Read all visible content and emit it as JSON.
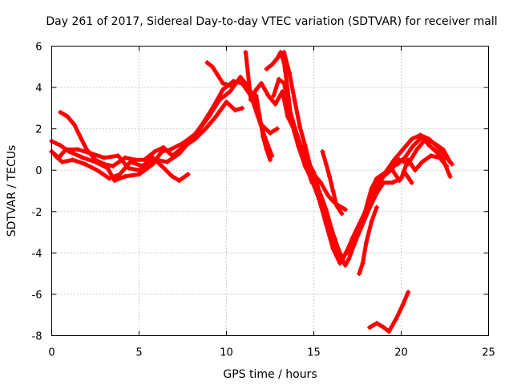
{
  "chart_data": {
    "type": "scatter",
    "title": "Day 261 of 2017, Sidereal Day-to-day VTEC variation (SDTVAR) for receiver mall",
    "xlabel": "GPS time / hours",
    "ylabel": "SDTVAR / TECUs",
    "xlim": [
      0,
      25
    ],
    "ylim": [
      -8,
      6
    ],
    "xticks": [
      "0",
      "5",
      "10",
      "15",
      "20",
      "25"
    ],
    "yticks": [
      "-8",
      "-6",
      "-4",
      "-2",
      "0",
      "2",
      "4",
      "6"
    ],
    "grid": true,
    "legend": "none",
    "marker": "plus",
    "color": "#ff0000",
    "series": [
      {
        "points": [
          [
            0.0,
            1.4
          ],
          [
            0.5,
            1.2
          ],
          [
            1.0,
            0.9
          ],
          [
            1.8,
            0.6
          ],
          [
            2.5,
            0.4
          ],
          [
            3.2,
            0.1
          ],
          [
            3.6,
            -0.5
          ],
          [
            4.2,
            -0.3
          ],
          [
            5.0,
            -0.2
          ],
          [
            5.8,
            0.3
          ],
          [
            6.3,
            0.9
          ],
          [
            6.8,
            1.0
          ],
          [
            7.5,
            1.3
          ],
          [
            8.3,
            1.8
          ],
          [
            9.0,
            2.6
          ],
          [
            9.6,
            3.4
          ],
          [
            10.2,
            3.8
          ],
          [
            10.8,
            4.5
          ],
          [
            11.3,
            4.0
          ],
          [
            11.7,
            3.1
          ],
          [
            12.0,
            2.2
          ],
          [
            12.5,
            1.8
          ],
          [
            12.9,
            2.0
          ]
        ]
      },
      {
        "points": [
          [
            0.0,
            0.9
          ],
          [
            0.4,
            0.6
          ],
          [
            0.8,
            1.0
          ],
          [
            1.5,
            1.0
          ],
          [
            2.3,
            0.8
          ],
          [
            3.0,
            0.6
          ],
          [
            3.8,
            0.7
          ],
          [
            4.4,
            0.1
          ],
          [
            5.0,
            0.0
          ],
          [
            5.6,
            0.3
          ],
          [
            6.0,
            0.5
          ],
          [
            6.6,
            0.4
          ],
          [
            7.3,
            0.8
          ],
          [
            7.9,
            1.4
          ],
          [
            8.6,
            2.2
          ],
          [
            9.2,
            3.0
          ],
          [
            9.8,
            3.9
          ],
          [
            10.4,
            4.3
          ],
          [
            10.9,
            4.2
          ],
          [
            11.4,
            3.6
          ],
          [
            11.8,
            2.6
          ],
          [
            12.2,
            1.6
          ],
          [
            12.6,
            0.7
          ]
        ]
      },
      {
        "points": [
          [
            0.2,
            0.7
          ],
          [
            0.6,
            0.4
          ],
          [
            1.2,
            0.5
          ],
          [
            1.9,
            0.3
          ],
          [
            2.6,
            0.0
          ],
          [
            3.3,
            -0.4
          ],
          [
            3.9,
            -0.2
          ],
          [
            4.5,
            0.4
          ],
          [
            5.2,
            0.2
          ],
          [
            5.8,
            0.6
          ],
          [
            6.3,
            0.2
          ],
          [
            6.9,
            -0.3
          ],
          [
            7.3,
            -0.5
          ],
          [
            7.8,
            -0.2
          ]
        ]
      },
      {
        "points": [
          [
            0.5,
            2.8
          ],
          [
            0.9,
            2.6
          ],
          [
            1.3,
            2.2
          ],
          [
            1.7,
            1.5
          ],
          [
            2.0,
            1.0
          ],
          [
            2.5,
            0.5
          ],
          [
            3.0,
            0.3
          ],
          [
            3.5,
            0.2
          ],
          [
            4.2,
            0.6
          ],
          [
            4.8,
            0.5
          ],
          [
            5.3,
            0.5
          ],
          [
            5.9,
            0.9
          ],
          [
            6.4,
            1.1
          ],
          [
            6.9,
            0.7
          ],
          [
            7.5,
            1.1
          ],
          [
            8.2,
            1.5
          ],
          [
            8.8,
            2.0
          ],
          [
            9.4,
            2.6
          ],
          [
            10.0,
            3.3
          ],
          [
            10.5,
            2.9
          ],
          [
            10.9,
            3.0
          ]
        ]
      },
      {
        "points": [
          [
            11.1,
            5.7
          ],
          [
            11.4,
            3.4
          ],
          [
            11.7,
            3.9
          ],
          [
            12.0,
            4.2
          ],
          [
            12.4,
            3.6
          ],
          [
            12.8,
            3.2
          ],
          [
            13.2,
            3.8
          ],
          [
            13.5,
            2.6
          ],
          [
            13.8,
            2.1
          ],
          [
            14.1,
            1.2
          ],
          [
            14.5,
            0.2
          ],
          [
            14.9,
            -0.5
          ],
          [
            15.3,
            -1.4
          ],
          [
            15.7,
            -2.6
          ],
          [
            16.1,
            -3.8
          ],
          [
            16.5,
            -4.5
          ],
          [
            16.9,
            -3.9
          ],
          [
            17.4,
            -3.2
          ],
          [
            17.9,
            -2.3
          ],
          [
            18.4,
            -1.2
          ],
          [
            18.9,
            -0.4
          ],
          [
            19.3,
            0.1
          ],
          [
            19.8,
            0.3
          ],
          [
            20.2,
            0.6
          ],
          [
            20.7,
            1.2
          ],
          [
            21.2,
            1.6
          ],
          [
            21.6,
            1.2
          ],
          [
            22.0,
            0.9
          ],
          [
            22.4,
            0.5
          ],
          [
            22.8,
            -0.3
          ]
        ]
      },
      {
        "points": [
          [
            12.3,
            4.9
          ],
          [
            12.6,
            5.1
          ],
          [
            12.9,
            5.4
          ],
          [
            13.1,
            5.7
          ],
          [
            13.3,
            5.2
          ],
          [
            13.5,
            3.9
          ],
          [
            13.7,
            2.5
          ],
          [
            14.0,
            1.6
          ],
          [
            14.3,
            0.9
          ],
          [
            14.6,
            0.1
          ],
          [
            14.9,
            -0.6
          ],
          [
            15.2,
            -0.8
          ],
          [
            15.5,
            -1.5
          ],
          [
            15.8,
            -2.7
          ],
          [
            16.1,
            -3.6
          ],
          [
            16.3,
            -4.1
          ],
          [
            16.6,
            -4.4
          ],
          [
            16.9,
            -3.9
          ],
          [
            17.2,
            -3.3
          ],
          [
            17.6,
            -2.6
          ],
          [
            18.0,
            -1.9
          ],
          [
            18.3,
            -1.3
          ],
          [
            18.6,
            -0.7
          ],
          [
            19.0,
            -0.3
          ],
          [
            19.4,
            0.0
          ],
          [
            19.9,
            0.5
          ],
          [
            20.4,
            0.3
          ],
          [
            20.9,
            1.0
          ],
          [
            21.4,
            1.5
          ],
          [
            21.9,
            1.3
          ],
          [
            22.4,
            1.0
          ],
          [
            22.8,
            0.4
          ]
        ]
      },
      {
        "points": [
          [
            12.7,
            3.6
          ],
          [
            13.0,
            4.4
          ],
          [
            13.3,
            4.2
          ],
          [
            13.6,
            3.0
          ],
          [
            13.9,
            2.1
          ],
          [
            14.2,
            1.3
          ],
          [
            14.6,
            0.5
          ],
          [
            15.0,
            -0.1
          ],
          [
            15.3,
            -1.0
          ],
          [
            15.6,
            -1.8
          ],
          [
            15.9,
            -2.7
          ],
          [
            16.2,
            -3.3
          ],
          [
            16.5,
            -4.1
          ],
          [
            16.8,
            -4.6
          ],
          [
            17.0,
            -4.3
          ],
          [
            17.4,
            -3.4
          ],
          [
            17.8,
            -2.6
          ],
          [
            18.2,
            -1.8
          ],
          [
            18.6,
            -1.1
          ],
          [
            19.0,
            -0.6
          ],
          [
            19.5,
            -0.6
          ],
          [
            20.0,
            -0.4
          ],
          [
            20.4,
            0.5
          ],
          [
            20.8,
            0.0
          ],
          [
            21.2,
            0.4
          ],
          [
            21.7,
            0.7
          ],
          [
            22.2,
            0.6
          ],
          [
            22.6,
            0.2
          ]
        ]
      },
      {
        "points": [
          [
            13.0,
            5.5
          ],
          [
            13.3,
            5.7
          ],
          [
            13.6,
            4.7
          ],
          [
            13.9,
            3.4
          ],
          [
            14.2,
            2.1
          ],
          [
            14.5,
            1.2
          ],
          [
            14.8,
            0.2
          ],
          [
            15.1,
            -0.6
          ],
          [
            15.4,
            -1.2
          ],
          [
            15.7,
            -1.9
          ],
          [
            16.0,
            -2.8
          ],
          [
            16.3,
            -3.6
          ],
          [
            16.6,
            -4.2
          ],
          [
            16.9,
            -4.0
          ],
          [
            17.2,
            -3.5
          ],
          [
            17.5,
            -3.0
          ],
          [
            17.9,
            -2.1
          ],
          [
            18.3,
            -0.9
          ],
          [
            18.6,
            -0.4
          ],
          [
            19.1,
            -0.1
          ],
          [
            19.6,
            0.5
          ],
          [
            20.1,
            1.0
          ],
          [
            20.6,
            1.5
          ],
          [
            21.1,
            1.7
          ],
          [
            21.6,
            1.5
          ],
          [
            22.1,
            1.1
          ],
          [
            22.5,
            0.7
          ],
          [
            22.9,
            0.3
          ]
        ]
      },
      {
        "points": [
          [
            14.6,
            0.2
          ],
          [
            15.0,
            -0.2
          ],
          [
            15.4,
            -0.6
          ],
          [
            15.8,
            -1.2
          ],
          [
            16.1,
            -1.5
          ],
          [
            16.4,
            -1.7
          ],
          [
            16.8,
            -1.9
          ]
        ]
      },
      {
        "points": [
          [
            15.5,
            0.9
          ],
          [
            15.7,
            0.3
          ],
          [
            15.9,
            -0.3
          ],
          [
            16.1,
            -1.0
          ],
          [
            16.3,
            -1.7
          ],
          [
            16.6,
            -2.1
          ]
        ]
      },
      {
        "points": [
          [
            11.7,
            3.6
          ],
          [
            11.9,
            2.6
          ],
          [
            12.1,
            1.6
          ],
          [
            12.3,
            1.0
          ],
          [
            12.5,
            0.5
          ]
        ]
      },
      {
        "points": [
          [
            17.6,
            -5.0
          ],
          [
            17.8,
            -4.5
          ],
          [
            18.0,
            -3.5
          ],
          [
            18.3,
            -2.5
          ],
          [
            18.6,
            -1.8
          ]
        ]
      },
      {
        "points": [
          [
            19.5,
            0.0
          ],
          [
            19.9,
            -0.5
          ],
          [
            20.2,
            -0.1
          ],
          [
            20.6,
            -0.6
          ]
        ]
      },
      {
        "points": [
          [
            8.9,
            5.2
          ],
          [
            9.2,
            5.0
          ],
          [
            9.5,
            4.6
          ],
          [
            9.8,
            4.2
          ],
          [
            10.2,
            4.1
          ]
        ]
      },
      {
        "points": [
          [
            18.2,
            -7.6
          ],
          [
            18.6,
            -7.4
          ],
          [
            19.0,
            -7.6
          ],
          [
            19.3,
            -7.8
          ],
          [
            19.7,
            -7.2
          ],
          [
            20.1,
            -6.5
          ],
          [
            20.4,
            -5.9
          ]
        ]
      }
    ]
  }
}
